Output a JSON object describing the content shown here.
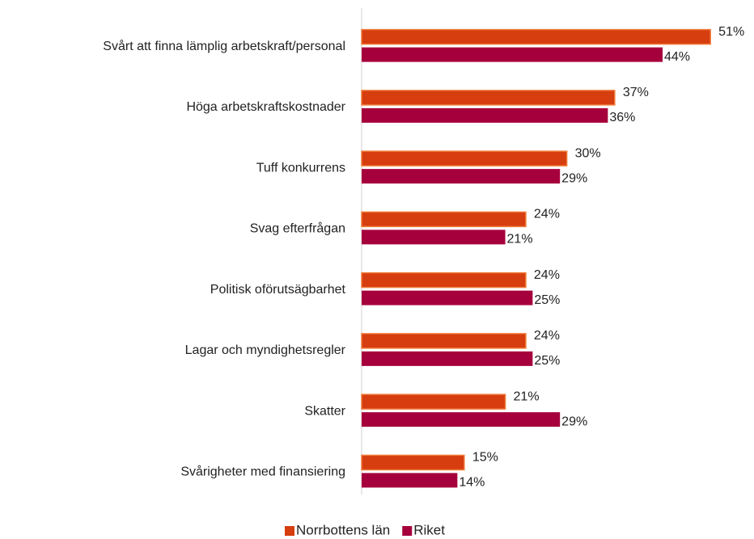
{
  "chart_data": {
    "type": "bar",
    "orientation": "horizontal",
    "categories": [
      "Svårt att finna lämplig arbetskraft/personal",
      "Höga arbetskraftskostnader",
      "Tuff konkurrens",
      "Svag efterfrågan",
      "Politisk oförutsägbarhet",
      "Lagar och myndighetsregler",
      "Skatter",
      "Svårigheter med finansiering"
    ],
    "series": [
      {
        "name": "Norrbottens län",
        "color": "#d63d0f",
        "values": [
          51,
          37,
          30,
          24,
          24,
          24,
          21,
          15
        ],
        "value_labels": [
          "51%",
          "37%",
          "30%",
          "24%",
          "24%",
          "24%",
          "21%",
          "15%"
        ]
      },
      {
        "name": "Riket",
        "color": "#a6003c",
        "values": [
          44,
          36,
          29,
          21,
          25,
          25,
          29,
          14
        ],
        "value_labels": [
          "44%",
          "36%",
          "29%",
          "21%",
          "25%",
          "25%",
          "29%",
          "14%"
        ]
      }
    ],
    "xlim": [
      0,
      55
    ],
    "legend": "bottom"
  }
}
